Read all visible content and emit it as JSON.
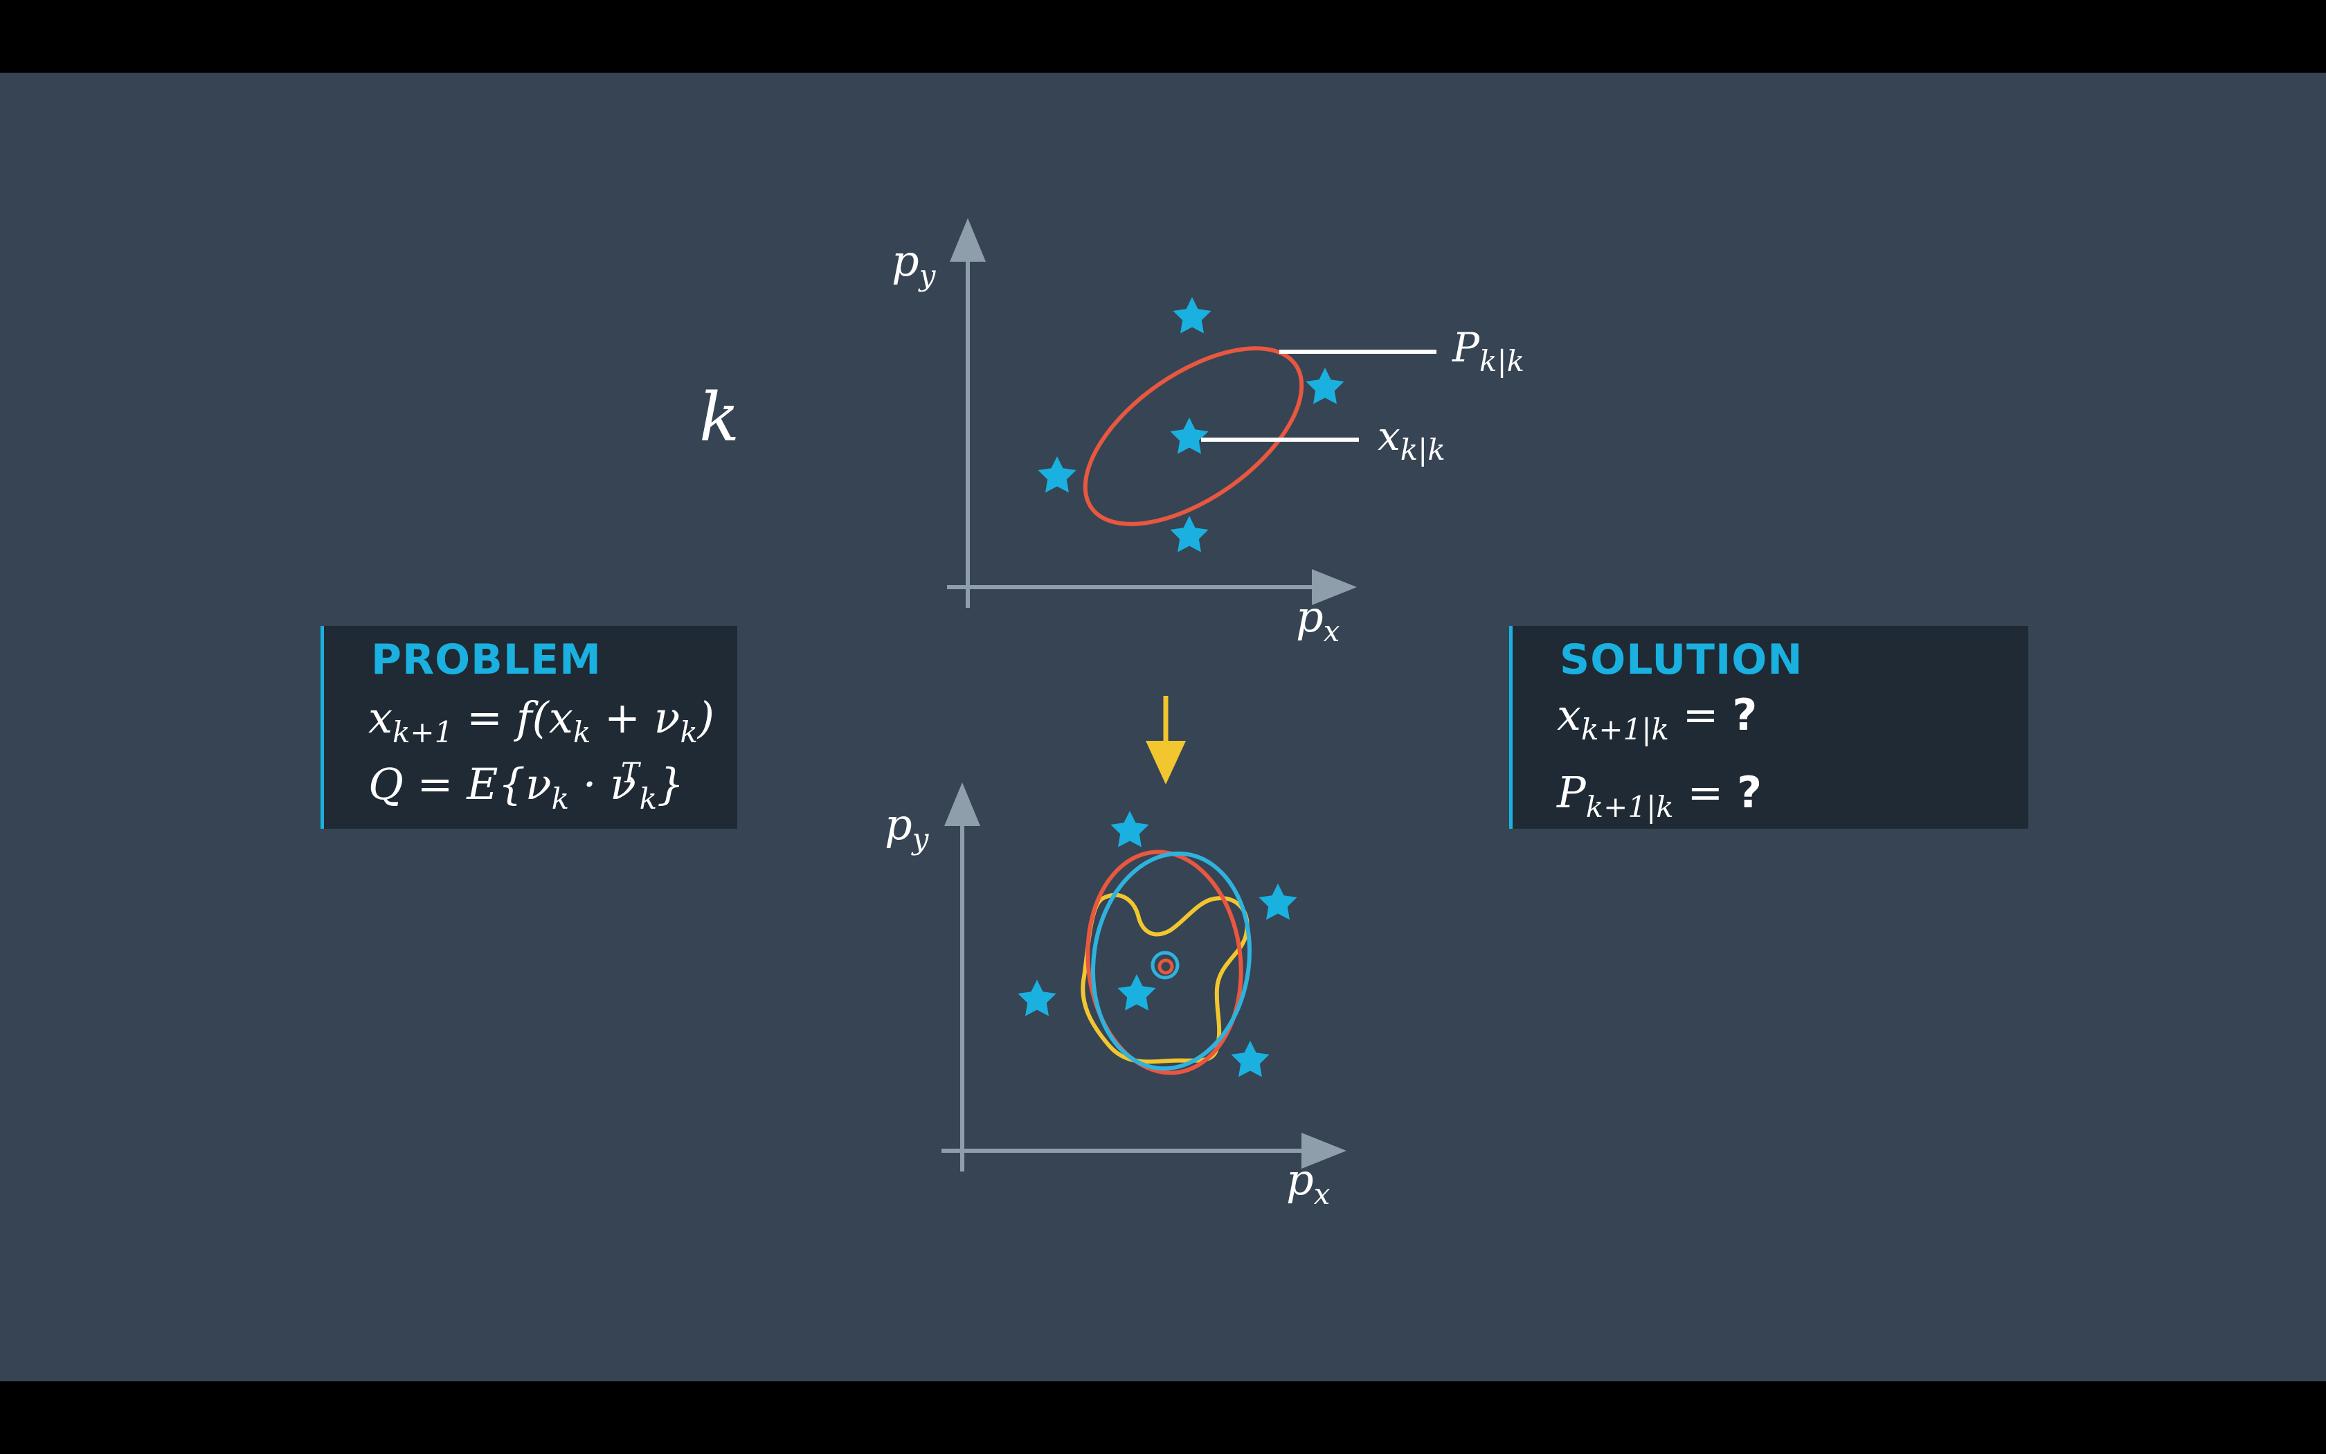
{
  "time_label": "k",
  "top_plot": {
    "y_axis": "p",
    "y_axis_sub": "y",
    "x_axis": "p",
    "x_axis_sub": "x",
    "covariance_label": "P",
    "covariance_label_sub": "k|k",
    "state_label": "x",
    "state_label_sub": "k|k"
  },
  "bottom_plot": {
    "y_axis": "p",
    "y_axis_sub": "y",
    "x_axis": "p",
    "x_axis_sub": "x"
  },
  "problem": {
    "title": "PROBLEM",
    "eq1": {
      "lhs": "x",
      "lhs_sub": "k+1",
      "rhs_a": " = f(x",
      "rhs_sub1": "k",
      "rhs_b": " + ν",
      "rhs_sub2": "k",
      "rhs_c": ")"
    },
    "eq2": {
      "a": "Q = E{ν",
      "sub1": "k",
      "b": " · ν",
      "sup": "T",
      "sub2": "k",
      "c": "}"
    }
  },
  "solution": {
    "title": "SOLUTION",
    "eq1": {
      "lhs": "x",
      "lhs_sub": "k+1|k",
      "eq": " = ",
      "val": "?"
    },
    "eq2": {
      "lhs": "P",
      "lhs_sub": "k+1|k",
      "eq": " = ",
      "val": "?"
    }
  },
  "colors": {
    "background": "#364453",
    "axis": "#8e9eab",
    "star": "#1ab1e0",
    "ellipse_red": "#e8573f",
    "ellipse_blue": "#2fb2dd",
    "shape_yellow": "#f2c62f",
    "arrow": "#f2c62f",
    "box_accent": "#1ab1e0"
  }
}
